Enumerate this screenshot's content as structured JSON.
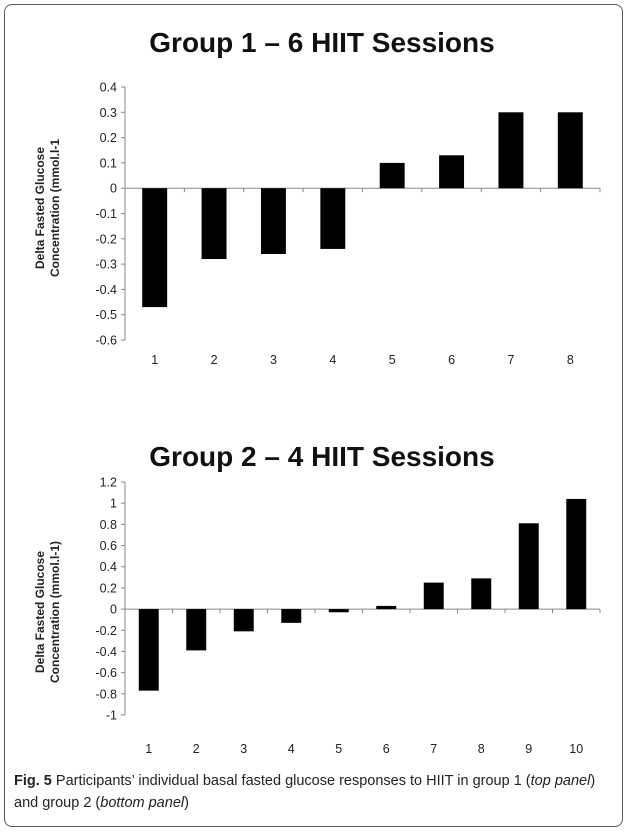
{
  "chart_data": [
    {
      "type": "bar",
      "title": "Group 1 – 6 HIIT Sessions",
      "ylabel_line1": "Delta Fasted Glucose",
      "ylabel_line2": "Concentration (mmol.l-1",
      "categories": [
        "1",
        "2",
        "3",
        "4",
        "5",
        "6",
        "7",
        "8"
      ],
      "values": [
        -0.47,
        -0.28,
        -0.26,
        -0.24,
        0.1,
        0.13,
        0.3,
        0.3
      ],
      "ylim": [
        -0.6,
        0.4
      ],
      "yticks": [
        "0.4",
        "0.3",
        "0.2",
        "0.1",
        "0",
        "-0.1",
        "-0.2",
        "-0.3",
        "-0.4",
        "-0.5",
        "-0.6"
      ],
      "bar_color": "#000000",
      "grid": false
    },
    {
      "type": "bar",
      "title": "Group 2 – 4 HIIT Sessions",
      "ylabel_line1": "Delta Fasted Glucose",
      "ylabel_line2": "Concentration (mmol.l-1)",
      "categories": [
        "1",
        "2",
        "3",
        "4",
        "5",
        "6",
        "7",
        "8",
        "9",
        "10"
      ],
      "values": [
        -0.77,
        -0.39,
        -0.21,
        -0.13,
        -0.03,
        0.03,
        0.25,
        0.29,
        0.81,
        1.04
      ],
      "ylim": [
        -1,
        1.2
      ],
      "yticks": [
        "1.2",
        "1",
        "0.8",
        "0.6",
        "0.4",
        "0.2",
        "0",
        "-0.2",
        "-0.4",
        "-0.6",
        "-0.8",
        "-1"
      ],
      "bar_color": "#000000",
      "grid": false
    }
  ],
  "caption": {
    "label": "Fig. 5",
    "text_a": " Participants’ individual basal fasted glucose responses to HIIT in group 1 (",
    "em_a": "top panel",
    "text_b": ") and group 2 (",
    "em_b": "bottom panel",
    "text_c": ")"
  }
}
